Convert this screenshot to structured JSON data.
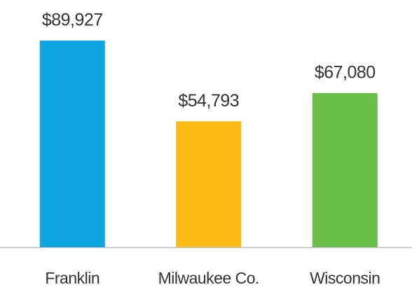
{
  "chart_data": {
    "type": "bar",
    "categories": [
      "Franklin",
      "Milwaukee Co.",
      "Wisconsin"
    ],
    "values": [
      89927,
      54793,
      67080
    ],
    "value_labels": [
      "$89,927",
      "$54,793",
      "$67,080"
    ],
    "colors": [
      "#0ea5e2",
      "#fcbb14",
      "#6bbf4b"
    ]
  }
}
